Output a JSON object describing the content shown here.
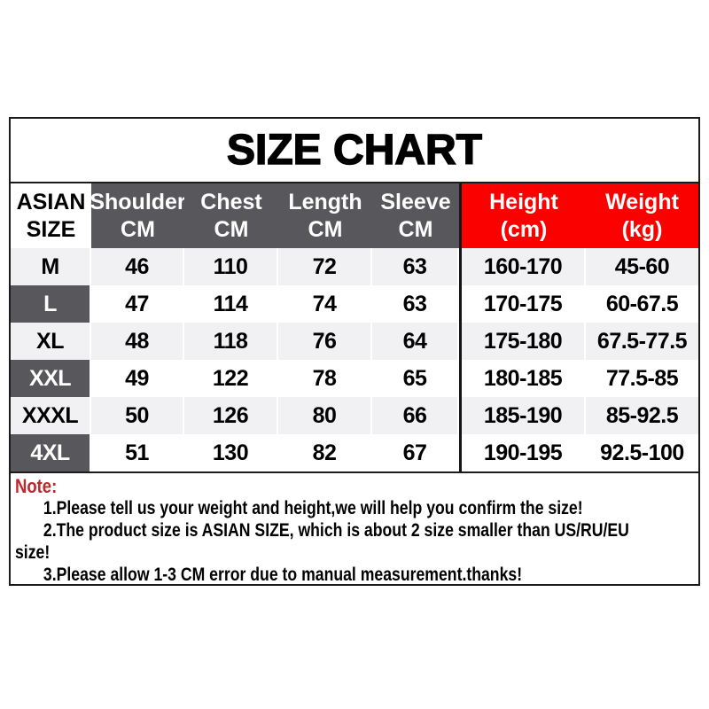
{
  "page": {
    "title": "SIZE CHART"
  },
  "table": {
    "size_column_header": {
      "line1": "ASIAN",
      "line2": "SIZE"
    },
    "columns": [
      {
        "label": "Shoulder",
        "unit": "CM"
      },
      {
        "label": "Chest",
        "unit": "CM"
      },
      {
        "label": "Length",
        "unit": "CM"
      },
      {
        "label": "Sleeve",
        "unit": "CM"
      },
      {
        "label": "Height",
        "unit": "(cm)"
      },
      {
        "label": "Weight",
        "unit": "(kg)"
      }
    ],
    "rows": [
      {
        "size": "M",
        "shoulder": "46",
        "chest": "110",
        "length": "72",
        "sleeve": "63",
        "height": "160-170",
        "weight": "45-60"
      },
      {
        "size": "L",
        "shoulder": "47",
        "chest": "114",
        "length": "74",
        "sleeve": "63",
        "height": "170-175",
        "weight": "60-67.5"
      },
      {
        "size": "XL",
        "shoulder": "48",
        "chest": "118",
        "length": "76",
        "sleeve": "64",
        "height": "175-180",
        "weight": "67.5-77.5"
      },
      {
        "size": "XXL",
        "shoulder": "49",
        "chest": "122",
        "length": "78",
        "sleeve": "65",
        "height": "180-185",
        "weight": "77.5-85"
      },
      {
        "size": "XXXL",
        "shoulder": "50",
        "chest": "126",
        "length": "80",
        "sleeve": "66",
        "height": "185-190",
        "weight": "85-92.5"
      },
      {
        "size": "4XL",
        "shoulder": "51",
        "chest": "130",
        "length": "82",
        "sleeve": "67",
        "height": "190-195",
        "weight": "92.5-100"
      }
    ]
  },
  "notes": {
    "label": "Note:",
    "items": [
      {
        "lines": [
          "1.Please tell us your weight and height,we will help you confirm the size!"
        ]
      },
      {
        "lines": [
          "2.The product size is ASIAN SIZE, which is about 2 size smaller than US/RU/EU",
          "size!"
        ]
      },
      {
        "lines": [
          "3.Please allow 1-3 CM error due to manual measurement.thanks!"
        ]
      }
    ]
  },
  "colors": {
    "header_red": "#fa0100",
    "header_dark_gray": "#58575b",
    "row_alt_gray": "#f1f0f2",
    "note_label_red": "#c0262c",
    "border_black": "#1b1b1b"
  }
}
